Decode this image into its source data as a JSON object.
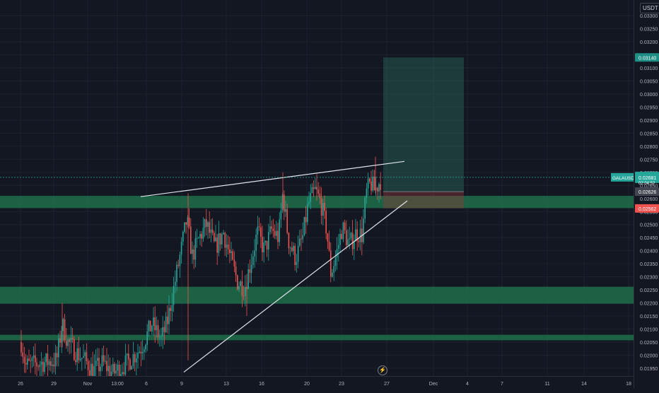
{
  "chart_data": {
    "type": "candlestick",
    "symbol": "GALAUSDT.P",
    "quote_currency": "USDT",
    "countdown": "02:04:52",
    "current_price": "0.02681",
    "price_ticks": [
      "0.03300",
      "0.03250",
      "0.03200",
      "0.03150",
      "0.03100",
      "0.03050",
      "0.03000",
      "0.02950",
      "0.02900",
      "0.02850",
      "0.02800",
      "0.02750",
      "0.02700",
      "0.02650",
      "0.02600",
      "0.02550",
      "0.02500",
      "0.02450",
      "0.02400",
      "0.02350",
      "0.02300",
      "0.02250",
      "0.02200",
      "0.02150",
      "0.02100",
      "0.02050",
      "0.02000",
      "0.01950"
    ],
    "time_ticks": [
      "26",
      "29",
      "Nov",
      "13:00",
      "6",
      "9",
      "13",
      "16",
      "20",
      "23",
      "27",
      "Dec",
      "4",
      "7",
      "11",
      "14",
      "18"
    ],
    "ylim": [
      0.0192,
      0.0336
    ],
    "target_price": "0.03140",
    "entry_price": "0.02626",
    "stop_price": "0.02562",
    "zones": [
      {
        "from": 0.02563,
        "to": 0.0261,
        "color": "#1e6e4a"
      },
      {
        "from": 0.02197,
        "to": 0.02262,
        "color": "#1e6e4a"
      },
      {
        "from": 0.02057,
        "to": 0.02078,
        "color": "#1e6e4a"
      }
    ],
    "trendlines": [
      {
        "p1": {
          "x": "Nov 2",
          "y": 0.02607
        },
        "p2": {
          "x": "Nov 28",
          "y": 0.02742
        }
      },
      {
        "p1": {
          "x": "Nov 9",
          "y": 0.01935
        },
        "p2": {
          "x": "Nov 28",
          "y": 0.02591
        }
      }
    ],
    "colors": {
      "up": "#26a69a",
      "down": "#ef5350",
      "target": "#2e7d67",
      "stop": "#8a3a3a",
      "price_label": "#26a69a",
      "stop_label": "#ef5350",
      "target_label": "#1f8f86"
    }
  }
}
